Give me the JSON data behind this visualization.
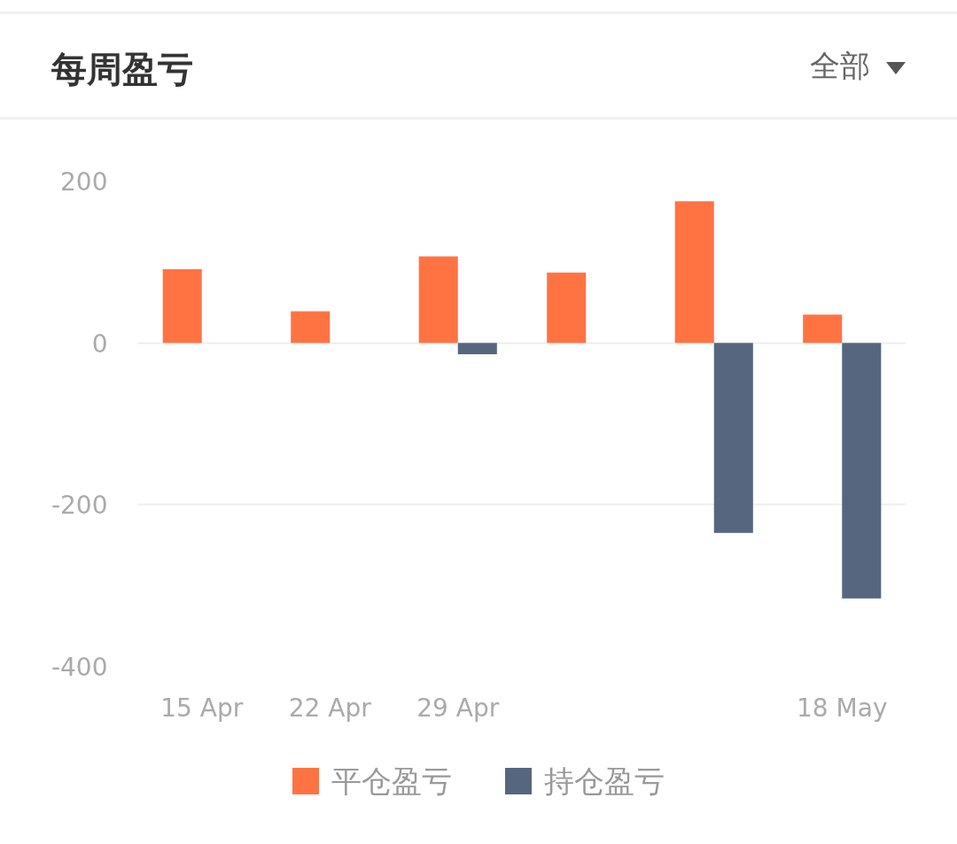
{
  "chart_data": {
    "type": "bar",
    "title": "每周盈亏",
    "annotations": [
      "全部"
    ],
    "categories": [
      "15 Apr",
      "22 Apr",
      "29 Apr",
      null,
      null,
      "18 May"
    ],
    "series": [
      {
        "name": "平仓盈亏",
        "color": "#ff7342",
        "values": [
          91,
          39,
          107,
          87,
          175,
          35
        ]
      },
      {
        "name": "持仓盈亏",
        "color": "#56667f",
        "values": [
          null,
          null,
          -14,
          null,
          -235,
          -316
        ]
      }
    ],
    "ylim": [
      -400,
      200
    ],
    "yticks": [
      -400,
      -200,
      0,
      200
    ],
    "grid": "y",
    "legend": "bottom"
  }
}
